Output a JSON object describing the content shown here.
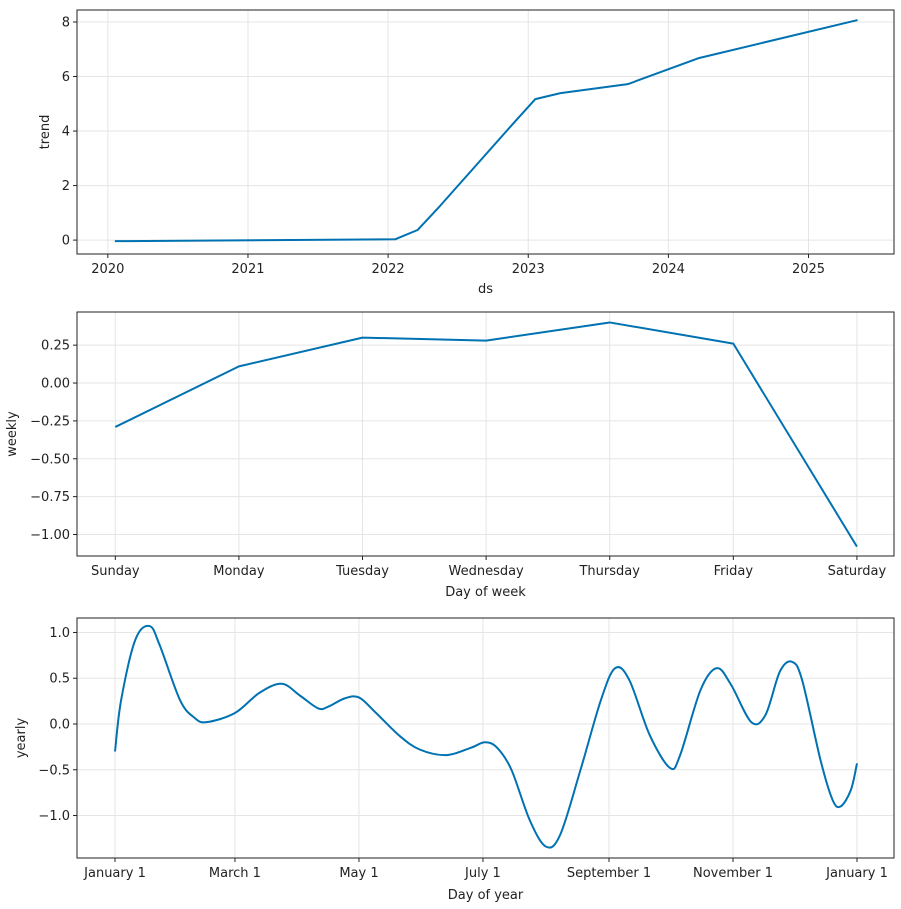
{
  "colors": {
    "line": "#0072B2",
    "grid": "#e5e5e5",
    "axis": "#222222"
  },
  "chart_data": [
    {
      "type": "line",
      "xlabel": "ds",
      "ylabel": "trend",
      "grid": true,
      "xlim": [
        2019.78,
        2025.61
      ],
      "ylim": [
        -0.51,
        8.44
      ],
      "xticks": [
        {
          "v": 2020,
          "label": "2020"
        },
        {
          "v": 2021,
          "label": "2021"
        },
        {
          "v": 2022,
          "label": "2022"
        },
        {
          "v": 2023,
          "label": "2023"
        },
        {
          "v": 2024,
          "label": "2024"
        },
        {
          "v": 2025,
          "label": "2025"
        }
      ],
      "yticks": [
        {
          "v": 0,
          "label": "0"
        },
        {
          "v": 2,
          "label": "2"
        },
        {
          "v": 4,
          "label": "4"
        },
        {
          "v": 6,
          "label": "6"
        },
        {
          "v": 8,
          "label": "8"
        }
      ],
      "smooth": false,
      "x": [
        2020.05,
        2022.05,
        2022.21,
        2022.37,
        2022.89,
        2023.05,
        2023.23,
        2023.71,
        2024.22,
        2025.35
      ],
      "y": [
        -0.04,
        0.03,
        0.37,
        1.25,
        4.26,
        5.17,
        5.39,
        5.72,
        6.68,
        8.07
      ]
    },
    {
      "type": "line",
      "xlabel": "Day of week",
      "ylabel": "weekly",
      "grid": true,
      "xlim": [
        -0.31,
        6.3
      ],
      "ylim": [
        -1.142,
        0.469
      ],
      "xticks": [
        {
          "v": 0,
          "label": "Sunday"
        },
        {
          "v": 1,
          "label": "Monday"
        },
        {
          "v": 2,
          "label": "Tuesday"
        },
        {
          "v": 3,
          "label": "Wednesday"
        },
        {
          "v": 4,
          "label": "Thursday"
        },
        {
          "v": 5,
          "label": "Friday"
        },
        {
          "v": 6,
          "label": "Saturday"
        }
      ],
      "yticks": [
        {
          "v": 0.25,
          "label": "0.25"
        },
        {
          "v": 0,
          "label": "0.00"
        },
        {
          "v": -0.25,
          "label": "−0.25"
        },
        {
          "v": -0.5,
          "label": "−0.50"
        },
        {
          "v": -0.75,
          "label": "−0.75"
        },
        {
          "v": -1,
          "label": "−1.00"
        }
      ],
      "smooth": false,
      "categories": [
        "Sunday",
        "Monday",
        "Tuesday",
        "Wednesday",
        "Thursday",
        "Friday",
        "Saturday"
      ],
      "x": [
        0,
        1,
        2,
        3,
        4,
        5,
        6
      ],
      "y": [
        -0.29,
        0.11,
        0.3,
        0.28,
        0.4,
        0.26,
        -1.08
      ]
    },
    {
      "type": "line",
      "xlabel": "Day of year",
      "ylabel": "yearly",
      "grid": true,
      "xlim": [
        -18.7,
        383.2
      ],
      "ylim": [
        -1.464,
        1.158
      ],
      "xticks": [
        {
          "v": 0,
          "label": "January 1"
        },
        {
          "v": 59,
          "label": "March 1"
        },
        {
          "v": 120,
          "label": "May 1"
        },
        {
          "v": 181,
          "label": "July 1"
        },
        {
          "v": 243,
          "label": "September 1"
        },
        {
          "v": 304,
          "label": "November 1"
        },
        {
          "v": 365,
          "label": "January 1"
        }
      ],
      "yticks": [
        {
          "v": 1,
          "label": "1.0"
        },
        {
          "v": 0.5,
          "label": "0.5"
        },
        {
          "v": 0,
          "label": "0.0"
        },
        {
          "v": -0.5,
          "label": "−0.5"
        },
        {
          "v": -1,
          "label": "−1.0"
        }
      ],
      "smooth": true,
      "x": [
        0,
        3,
        10,
        17,
        22,
        32,
        39,
        45,
        59,
        71,
        82,
        91,
        100,
        105,
        113,
        120,
        128,
        140,
        150,
        163,
        175,
        182,
        188,
        195,
        204,
        212,
        219,
        229,
        239,
        246,
        253,
        263,
        273,
        278,
        288,
        296,
        303,
        313,
        320,
        327,
        333,
        338,
        347,
        353,
        357,
        362,
        365
      ],
      "y": [
        -0.3,
        0.26,
        0.92,
        1.07,
        0.86,
        0.26,
        0.07,
        0.02,
        0.12,
        0.34,
        0.44,
        0.31,
        0.17,
        0.19,
        0.28,
        0.29,
        0.13,
        -0.13,
        -0.28,
        -0.34,
        -0.26,
        -0.2,
        -0.26,
        -0.5,
        -1.05,
        -1.34,
        -1.21,
        -0.5,
        0.26,
        0.61,
        0.48,
        -0.12,
        -0.48,
        -0.34,
        0.37,
        0.61,
        0.43,
        0.02,
        0.1,
        0.57,
        0.68,
        0.48,
        -0.39,
        -0.83,
        -0.9,
        -0.72,
        -0.43
      ]
    }
  ]
}
